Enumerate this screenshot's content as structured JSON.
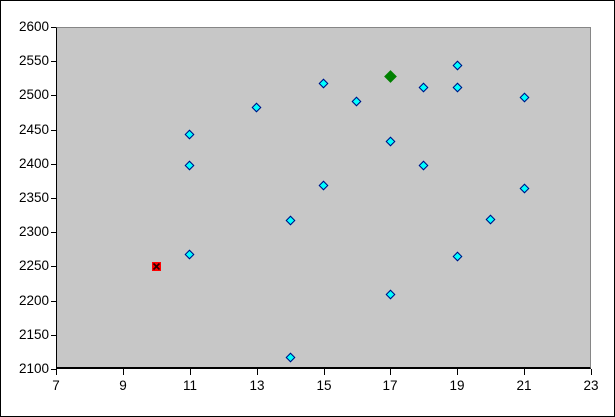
{
  "chart_data": {
    "type": "scatter",
    "title": "",
    "xlabel": "",
    "ylabel": "",
    "xlim": [
      7,
      23
    ],
    "ylim": [
      2100,
      2600
    ],
    "x_ticks": [
      7,
      9,
      11,
      13,
      15,
      17,
      19,
      21,
      23
    ],
    "y_ticks": [
      2600,
      2550,
      2500,
      2450,
      2400,
      2350,
      2300,
      2250,
      2200,
      2150,
      2100
    ],
    "grid": false,
    "legend_position": "none",
    "plot_background": "#c7c7c7",
    "axis_color": "#000000",
    "series": [
      {
        "name": "blue-diamond-series",
        "marker": "diamond",
        "fill": "#00ffff",
        "border": "#000080",
        "points": [
          [
            11,
            2443
          ],
          [
            11,
            2398
          ],
          [
            11,
            2268
          ],
          [
            13,
            2482
          ],
          [
            14,
            2317
          ],
          [
            14,
            2117
          ],
          [
            15,
            2517
          ],
          [
            15,
            2369
          ],
          [
            16,
            2491
          ],
          [
            17,
            2433
          ],
          [
            17,
            2209
          ],
          [
            18,
            2512
          ],
          [
            18,
            2398
          ],
          [
            19,
            2544
          ],
          [
            19,
            2512
          ],
          [
            19,
            2265
          ],
          [
            20,
            2318
          ],
          [
            21,
            2497
          ],
          [
            21,
            2364
          ]
        ]
      },
      {
        "name": "red-square-point",
        "marker": "square-x",
        "fill": "#ff0000",
        "border": "#2a0000",
        "points": [
          [
            10,
            2250
          ]
        ]
      },
      {
        "name": "green-diamond-point",
        "marker": "diamond-filled",
        "fill": "#008000",
        "border": "#008000",
        "points": [
          [
            17,
            2528
          ]
        ]
      }
    ]
  },
  "layout_note": "no gridlines, no legend, no chart title"
}
